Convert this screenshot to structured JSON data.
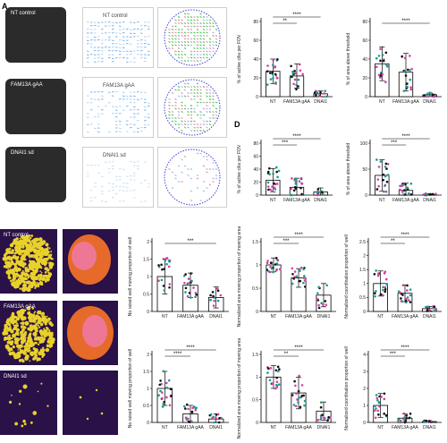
{
  "panels": {
    "letter_a": "A",
    "letter_d": "D"
  },
  "row_labels": {
    "nt": "NT control",
    "fam": "FAM13A gAA",
    "dnai": "DNAI1 sd"
  },
  "charts": [
    {
      "id": "c1",
      "type": "bar",
      "ylabel": "% of active cilia per FOV",
      "ylim": [
        0,
        80
      ],
      "yticks": [
        0,
        20,
        40,
        60,
        80
      ],
      "categories": [
        "NT",
        "FAM13A gAA",
        "DNAI1"
      ],
      "values": [
        27,
        22,
        3
      ],
      "errors": [
        13,
        13,
        3
      ],
      "sig": [
        {
          "from": 0,
          "to": 1,
          "label": "**"
        },
        {
          "from": 0,
          "to": 2,
          "label": "****"
        }
      ]
    },
    {
      "id": "c2",
      "type": "bar",
      "ylabel": "% of area above threshold",
      "ylim": [
        0,
        80
      ],
      "yticks": [
        0,
        20,
        40,
        60,
        80
      ],
      "categories": [
        "NT",
        "FAM13A gAA",
        "DNAI1"
      ],
      "values": [
        35,
        26,
        2
      ],
      "errors": [
        18,
        20,
        2
      ],
      "sig": [
        {
          "from": 0,
          "to": 2,
          "label": "****"
        }
      ]
    },
    {
      "id": "c3",
      "type": "bar",
      "ylabel": "% of active cilia per FOV",
      "ylim": [
        0,
        80
      ],
      "yticks": [
        0,
        20,
        40,
        60,
        80
      ],
      "categories": [
        "NT",
        "FAM13A gAA",
        "DNAI1"
      ],
      "values": [
        23,
        12,
        5
      ],
      "errors": [
        18,
        14,
        6
      ],
      "sig": [
        {
          "from": 0,
          "to": 1,
          "label": "***"
        },
        {
          "from": 0,
          "to": 2,
          "label": "****"
        }
      ]
    },
    {
      "id": "c4",
      "type": "bar",
      "ylabel": "% of area above threshold",
      "ylim": [
        0,
        100
      ],
      "yticks": [
        0,
        50,
        100
      ],
      "categories": [
        "NT",
        "FAM13A gAA",
        "DNAI1"
      ],
      "values": [
        38,
        9,
        1
      ],
      "errors": [
        30,
        14,
        2
      ],
      "sig": [
        {
          "from": 0,
          "to": 1,
          "label": "***"
        },
        {
          "from": 0,
          "to": 2,
          "label": "****"
        }
      ]
    },
    {
      "id": "c5",
      "type": "bar",
      "ylabel": "No raised well moving proportion of well",
      "ylim": [
        0,
        2.0
      ],
      "yticks": [
        0,
        0.5,
        1.0,
        1.5,
        2.0
      ],
      "categories": [
        "NT",
        "FAM13A gAA",
        "DNAI1"
      ],
      "values": [
        1.0,
        0.75,
        0.4
      ],
      "errors": [
        0.5,
        0.35,
        0.3
      ],
      "sig": [
        {
          "from": 0,
          "to": 2,
          "label": "***"
        }
      ]
    },
    {
      "id": "c6",
      "type": "bar",
      "ylabel": "Normalized area moving proportion of moving area",
      "ylim": [
        0,
        1.5
      ],
      "yticks": [
        0,
        0.5,
        1.0,
        1.5
      ],
      "categories": [
        "NT",
        "FAM13A gAA",
        "DNAI1"
      ],
      "values": [
        1.0,
        0.72,
        0.35
      ],
      "errors": [
        0.15,
        0.2,
        0.25
      ],
      "sig": [
        {
          "from": 0,
          "to": 1,
          "label": "***"
        },
        {
          "from": 0,
          "to": 2,
          "label": "****"
        }
      ]
    },
    {
      "id": "c7",
      "type": "bar",
      "ylabel": "Normalized coordination proportion of well",
      "ylim": [
        0,
        2.5
      ],
      "yticks": [
        0,
        0.5,
        1.0,
        1.5,
        2.0,
        2.5
      ],
      "categories": [
        "NT",
        "FAM13A gAA",
        "DNAI1"
      ],
      "values": [
        1.0,
        0.65,
        0.1
      ],
      "errors": [
        0.45,
        0.3,
        0.08
      ],
      "sig": [
        {
          "from": 0,
          "to": 1,
          "label": "**"
        },
        {
          "from": 0,
          "to": 2,
          "label": "****"
        }
      ]
    },
    {
      "id": "c8",
      "type": "bar",
      "ylabel": "No raised well moving proportion of well",
      "ylim": [
        0,
        2.0
      ],
      "yticks": [
        0,
        0.5,
        1.0,
        1.5,
        2.0
      ],
      "categories": [
        "NT",
        "FAM13A gAA",
        "DNAI1"
      ],
      "values": [
        1.0,
        0.25,
        0.1
      ],
      "errors": [
        0.5,
        0.25,
        0.15
      ],
      "sig": [
        {
          "from": 0,
          "to": 1,
          "label": "****"
        },
        {
          "from": 0,
          "to": 2,
          "label": "****"
        }
      ]
    },
    {
      "id": "c9",
      "type": "bar",
      "ylabel": "Normalized area moving proportion of moving area",
      "ylim": [
        0,
        1.5
      ],
      "yticks": [
        0,
        0.5,
        1.0,
        1.5
      ],
      "categories": [
        "NT",
        "FAM13A gAA",
        "DNAI1"
      ],
      "values": [
        1.0,
        0.65,
        0.25
      ],
      "errors": [
        0.25,
        0.35,
        0.2
      ],
      "sig": [
        {
          "from": 0,
          "to": 1,
          "label": "**"
        },
        {
          "from": 0,
          "to": 2,
          "label": "****"
        }
      ]
    },
    {
      "id": "c10",
      "type": "bar",
      "ylabel": "Normalized coordination proportion of well",
      "ylim": [
        0,
        4.0
      ],
      "yticks": [
        0,
        1.0,
        2.0,
        3.0,
        4.0
      ],
      "categories": [
        "NT",
        "FAM13A gAA",
        "DNAI1"
      ],
      "values": [
        1.0,
        0.25,
        0.05
      ],
      "errors": [
        0.7,
        0.25,
        0.05
      ],
      "sig": [
        {
          "from": 0,
          "to": 1,
          "label": "***"
        },
        {
          "from": 0,
          "to": 2,
          "label": "****"
        }
      ]
    }
  ],
  "colors": {
    "nt_dots": "#d23fa5",
    "teal_dots": "#1c9a8c",
    "black_dots": "#111111",
    "bar_fill": "#ffffff",
    "heat_orange": "#e66a2a",
    "heat_pink": "#f07ab0",
    "yellow": "#e8d12b",
    "purple_bg": "#2a1147"
  }
}
